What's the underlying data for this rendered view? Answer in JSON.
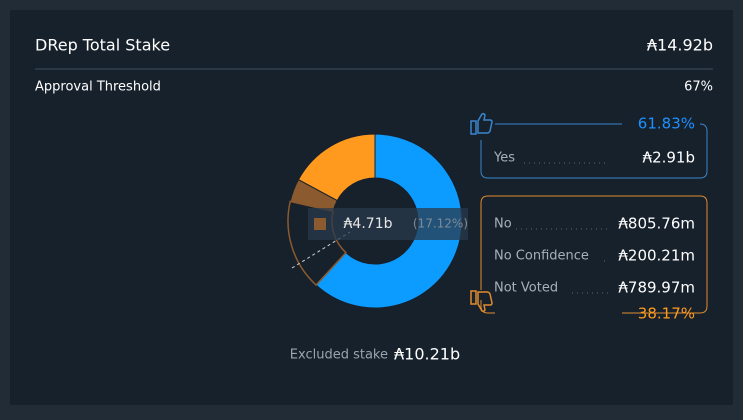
{
  "header": {
    "title": "DRep Total Stake",
    "total": "₳14.92b"
  },
  "threshold": {
    "label": "Approval Threshold",
    "value": "67%"
  },
  "donut": {
    "center_label": "₳4.71b",
    "tooltip_percent": "(17.12%)",
    "segments": [
      {
        "name": "Yes",
        "amount": 2910000000,
        "amount_label": "₳2.91b",
        "color": "#0c9bff",
        "filled": true
      },
      {
        "name": "No",
        "amount": 805760000,
        "amount_label": "₳805.76m",
        "color": "#ff9a1e",
        "filled": true
      },
      {
        "name": "No Confidence",
        "amount": 200210000,
        "amount_label": "₳200.21m",
        "color": "#8b5a2e",
        "filled": true
      },
      {
        "name": "Not Voted",
        "amount": 789970000,
        "amount_label": "₳789.97m",
        "color": "#8b5a2e",
        "filled": false
      }
    ]
  },
  "yes_group": {
    "percent": "61.83%",
    "color": "#3a86cc",
    "text_color": "#1e90ff"
  },
  "no_group": {
    "percent": "38.17%",
    "color": "#e08a2c",
    "text_color": "#ff9a1e"
  },
  "excluded": {
    "label": "Excluded stake",
    "value": "₳10.21b"
  }
}
